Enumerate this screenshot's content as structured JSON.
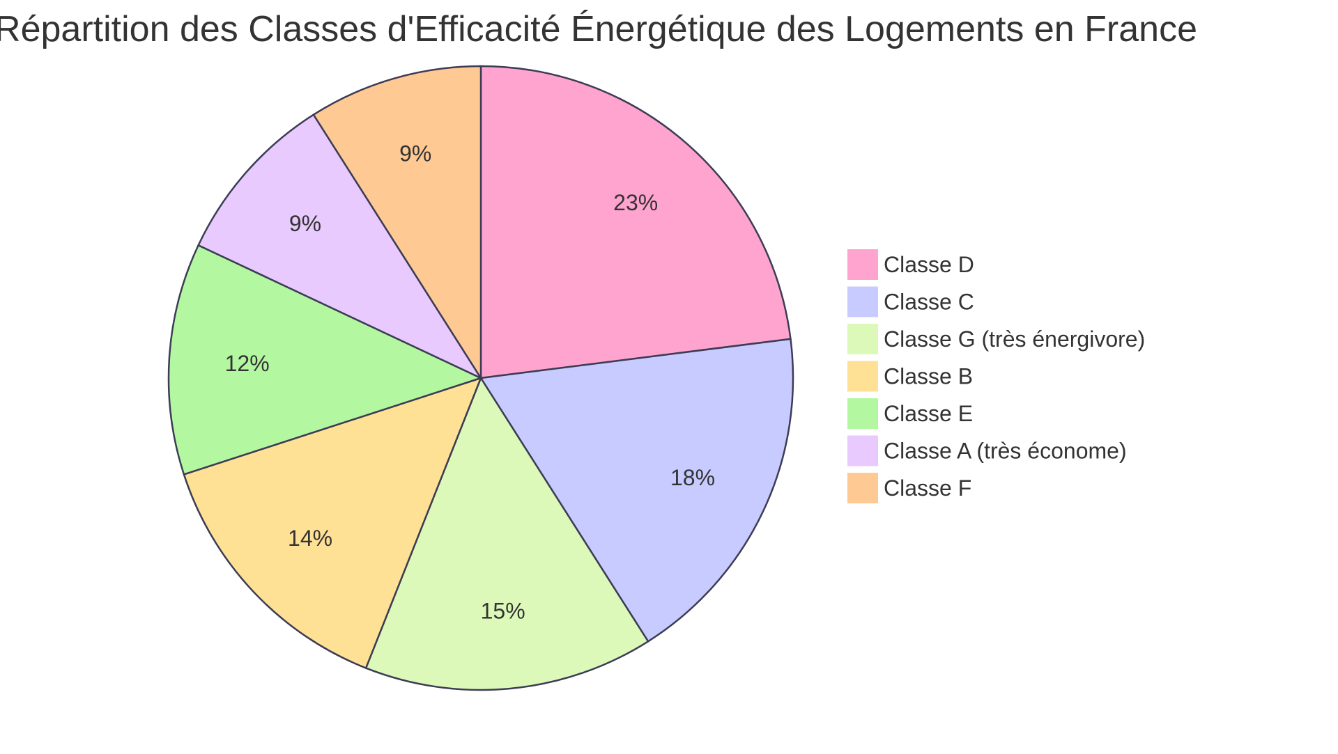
{
  "chart_data": {
    "type": "pie",
    "title": "Répartition des Classes d'Efficacité Énergétique des Logements en France",
    "legend_position": "right",
    "slices": [
      {
        "label": "Classe D",
        "value": 23,
        "display": "23%",
        "color": "#ffa3cf"
      },
      {
        "label": "Classe C",
        "value": 18,
        "display": "18%",
        "color": "#c8cbff"
      },
      {
        "label": "Classe G (très énergivore)",
        "value": 15,
        "display": "15%",
        "color": "#dcf9b9"
      },
      {
        "label": "Classe B",
        "value": 14,
        "display": "14%",
        "color": "#ffe196"
      },
      {
        "label": "Classe E",
        "value": 12,
        "display": "12%",
        "color": "#b3f8a1"
      },
      {
        "label": "Classe A (très économe)",
        "value": 9,
        "display": "9%",
        "color": "#e8caff"
      },
      {
        "label": "Classe F",
        "value": 9,
        "display": "9%",
        "color": "#ffc993"
      }
    ]
  }
}
